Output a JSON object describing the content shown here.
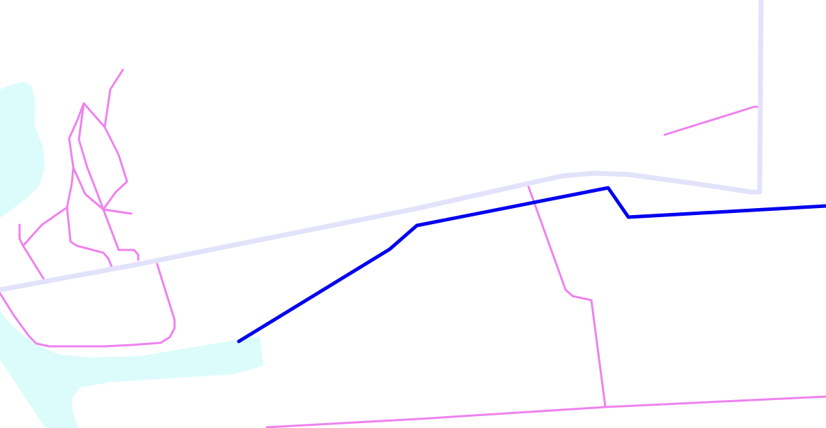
{
  "map": {
    "background_color": "#ffffff",
    "layers": {
      "water": {
        "color": "#dcfcfc"
      },
      "major_road": {
        "color": "#e2e2fa"
      },
      "minor_roads": {
        "color": "#ee82ee"
      },
      "highlighted_route": {
        "color": "#0000ee"
      }
    }
  }
}
